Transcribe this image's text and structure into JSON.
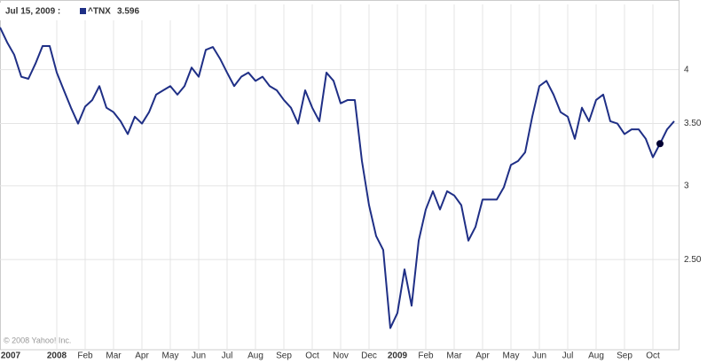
{
  "chart_data": {
    "type": "line",
    "date_label": "Jul 15, 2009 :",
    "legend_value": 3.596,
    "annotation": "© 2008 Yahoo! Inc.",
    "categories": [
      "2007",
      null,
      null,
      null,
      null,
      null,
      null,
      null,
      "2008",
      null,
      null,
      null,
      "Feb",
      null,
      null,
      null,
      "Mar",
      null,
      null,
      null,
      "Apr",
      null,
      null,
      null,
      "May",
      null,
      null,
      null,
      "Jun",
      null,
      null,
      null,
      "Jul",
      null,
      null,
      null,
      "Aug",
      null,
      null,
      null,
      "Sep",
      null,
      null,
      null,
      "Oct",
      null,
      null,
      null,
      "Nov",
      null,
      null,
      null,
      "Dec",
      null,
      null,
      null,
      "2009",
      null,
      null,
      null,
      "Feb",
      null,
      null,
      null,
      "Mar",
      null,
      null,
      null,
      "Apr",
      null,
      null,
      null,
      "May",
      null,
      null,
      null,
      "Jun",
      null,
      null,
      null,
      "Jul",
      null,
      null,
      null,
      "Aug",
      null,
      null,
      null,
      "Sep",
      null,
      null,
      null,
      "Oct",
      null,
      null,
      null
    ],
    "series": [
      {
        "name": "^TNX",
        "color": "#1f2f86",
        "values": [
          4.44,
          4.28,
          4.15,
          3.93,
          3.91,
          4.06,
          4.24,
          4.24,
          3.97,
          3.8,
          3.64,
          3.5,
          3.65,
          3.71,
          3.84,
          3.64,
          3.6,
          3.52,
          3.41,
          3.56,
          3.5,
          3.6,
          3.76,
          3.8,
          3.84,
          3.76,
          3.84,
          4.02,
          3.93,
          4.2,
          4.23,
          4.11,
          3.97,
          3.84,
          3.93,
          3.97,
          3.89,
          3.93,
          3.84,
          3.8,
          3.71,
          3.64,
          3.5,
          3.8,
          3.64,
          3.52,
          3.97,
          3.89,
          3.68,
          3.71,
          3.71,
          3.19,
          2.86,
          2.65,
          2.56,
          2.11,
          2.19,
          2.44,
          2.23,
          2.62,
          2.83,
          2.96,
          2.83,
          2.96,
          2.93,
          2.86,
          2.62,
          2.71,
          2.9,
          2.9,
          2.9,
          2.99,
          3.16,
          3.19,
          3.26,
          3.56,
          3.84,
          3.89,
          3.76,
          3.6,
          3.56,
          3.37,
          3.64,
          3.52,
          3.71,
          3.76,
          3.52,
          3.5,
          3.41,
          3.45,
          3.45,
          3.37,
          3.22,
          3.33,
          3.45,
          3.52
        ]
      }
    ],
    "marker_index": 93,
    "ylim": [
      2,
      4.7
    ],
    "yticks": [
      4,
      {
        "value": 3.5,
        "label": "3.50"
      },
      3,
      {
        "value": 2.5,
        "label": "2.50"
      }
    ],
    "log_scale": true,
    "grid": true
  }
}
